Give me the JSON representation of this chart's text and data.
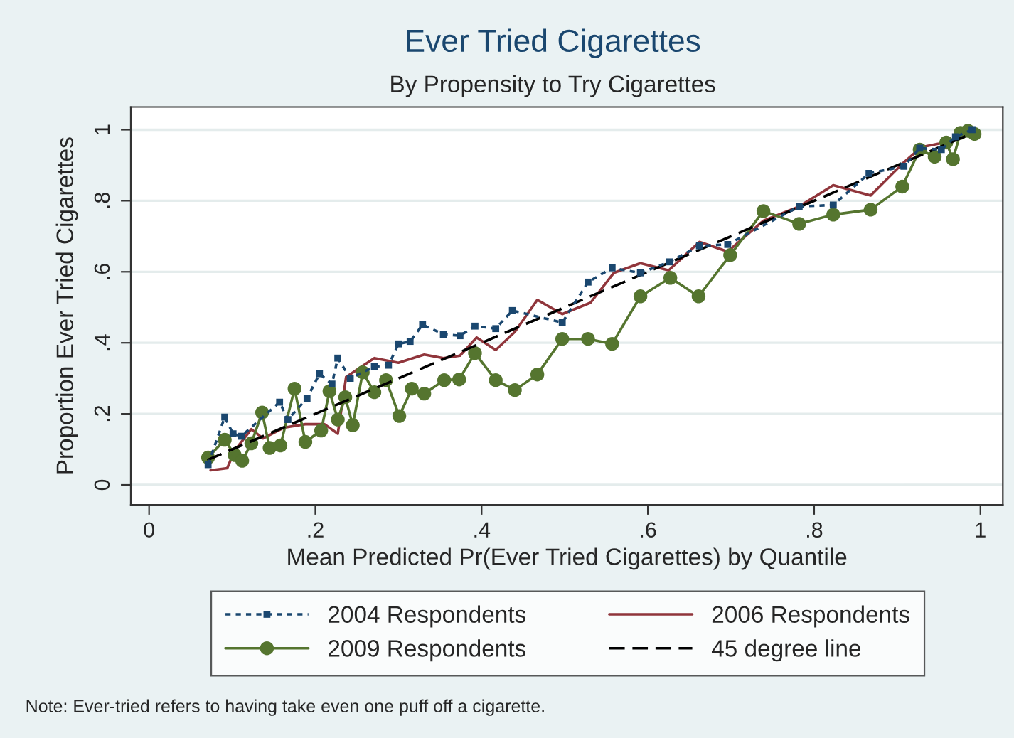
{
  "chart_data": {
    "type": "line",
    "title": "Ever Tried Cigarettes",
    "subtitle": "By Propensity to Try Cigarettes",
    "xlabel": "Mean Predicted Pr(Ever Tried Cigarettes) by Quantile",
    "ylabel": "Proportion Ever Tried Cigarettes",
    "xlim": [
      -0.022,
      1.027
    ],
    "ylim": [
      -0.056,
      1.064
    ],
    "xticks": [
      {
        "value": 0,
        "label": "0"
      },
      {
        "value": 0.2,
        "label": ".2"
      },
      {
        "value": 0.4,
        "label": ".4"
      },
      {
        "value": 0.6,
        "label": ".6"
      },
      {
        "value": 0.8,
        "label": ".8"
      },
      {
        "value": 1,
        "label": "1"
      }
    ],
    "yticks": [
      {
        "value": 0,
        "label": "0"
      },
      {
        "value": 0.2,
        "label": ".2"
      },
      {
        "value": 0.4,
        "label": ".4"
      },
      {
        "value": 0.6,
        "label": ".6"
      },
      {
        "value": 0.8,
        "label": ".8"
      },
      {
        "value": 1,
        "label": "1"
      }
    ],
    "grid": "y",
    "legend": "bottom",
    "series": [
      {
        "name": "2004 Respondents",
        "color": "#1a476f",
        "marker": "square",
        "line_style": "dotted",
        "x": [
          0.071,
          0.091,
          0.101,
          0.111,
          0.157,
          0.167,
          0.19,
          0.205,
          0.22,
          0.227,
          0.242,
          0.271,
          0.288,
          0.3,
          0.314,
          0.329,
          0.354,
          0.374,
          0.392,
          0.417,
          0.437,
          0.497,
          0.528,
          0.557,
          0.591,
          0.626,
          0.662,
          0.696,
          0.782,
          0.823,
          0.866,
          0.908,
          0.927,
          0.953,
          0.97,
          0.99
        ],
        "values": [
          0.057,
          0.191,
          0.144,
          0.137,
          0.233,
          0.184,
          0.244,
          0.313,
          0.284,
          0.357,
          0.3,
          0.333,
          0.337,
          0.397,
          0.404,
          0.451,
          0.424,
          0.42,
          0.447,
          0.44,
          0.491,
          0.457,
          0.571,
          0.611,
          0.597,
          0.628,
          0.673,
          0.677,
          0.784,
          0.788,
          0.877,
          0.897,
          0.948,
          0.944,
          0.98,
          1.0
        ]
      },
      {
        "name": "2006 Respondents",
        "color": "#90353b",
        "marker": "none",
        "line_style": "solid",
        "x": [
          0.074,
          0.094,
          0.103,
          0.123,
          0.137,
          0.162,
          0.188,
          0.211,
          0.227,
          0.237,
          0.271,
          0.3,
          0.331,
          0.354,
          0.374,
          0.394,
          0.417,
          0.44,
          0.467,
          0.497,
          0.531,
          0.559,
          0.591,
          0.625,
          0.662,
          0.696,
          0.739,
          0.782,
          0.823,
          0.868,
          0.906,
          0.929,
          0.95,
          0.973,
          0.993
        ],
        "values": [
          0.041,
          0.047,
          0.097,
          0.157,
          0.131,
          0.161,
          0.171,
          0.171,
          0.144,
          0.304,
          0.357,
          0.344,
          0.367,
          0.357,
          0.364,
          0.415,
          0.38,
          0.431,
          0.521,
          0.481,
          0.513,
          0.597,
          0.624,
          0.604,
          0.684,
          0.657,
          0.744,
          0.784,
          0.844,
          0.815,
          0.904,
          0.951,
          0.961,
          0.975,
          0.997
        ]
      },
      {
        "name": "2009 Respondents",
        "color": "#55752f",
        "marker": "circle",
        "line_style": "solid",
        "x": [
          0.071,
          0.091,
          0.103,
          0.112,
          0.123,
          0.136,
          0.145,
          0.158,
          0.175,
          0.188,
          0.207,
          0.217,
          0.227,
          0.236,
          0.245,
          0.257,
          0.271,
          0.285,
          0.301,
          0.316,
          0.331,
          0.355,
          0.373,
          0.392,
          0.417,
          0.44,
          0.467,
          0.497,
          0.528,
          0.557,
          0.591,
          0.627,
          0.661,
          0.699,
          0.739,
          0.782,
          0.823,
          0.868,
          0.906,
          0.927,
          0.945,
          0.959,
          0.967,
          0.976,
          0.985,
          0.993
        ],
        "values": [
          0.077,
          0.127,
          0.084,
          0.068,
          0.117,
          0.204,
          0.104,
          0.111,
          0.271,
          0.121,
          0.153,
          0.264,
          0.184,
          0.247,
          0.168,
          0.317,
          0.261,
          0.295,
          0.194,
          0.271,
          0.257,
          0.295,
          0.297,
          0.371,
          0.295,
          0.267,
          0.311,
          0.411,
          0.411,
          0.397,
          0.531,
          0.583,
          0.531,
          0.647,
          0.771,
          0.735,
          0.761,
          0.775,
          0.84,
          0.944,
          0.924,
          0.964,
          0.917,
          0.991,
          0.997,
          0.988
        ]
      },
      {
        "name": "45 degree line",
        "color": "#000000",
        "marker": "none",
        "line_style": "dashed",
        "x": [
          0.07,
          0.99
        ],
        "values": [
          0.07,
          0.99
        ]
      }
    ],
    "annotations": [
      "Note: Ever-tried refers to having take even one puff off a cigarette."
    ]
  }
}
